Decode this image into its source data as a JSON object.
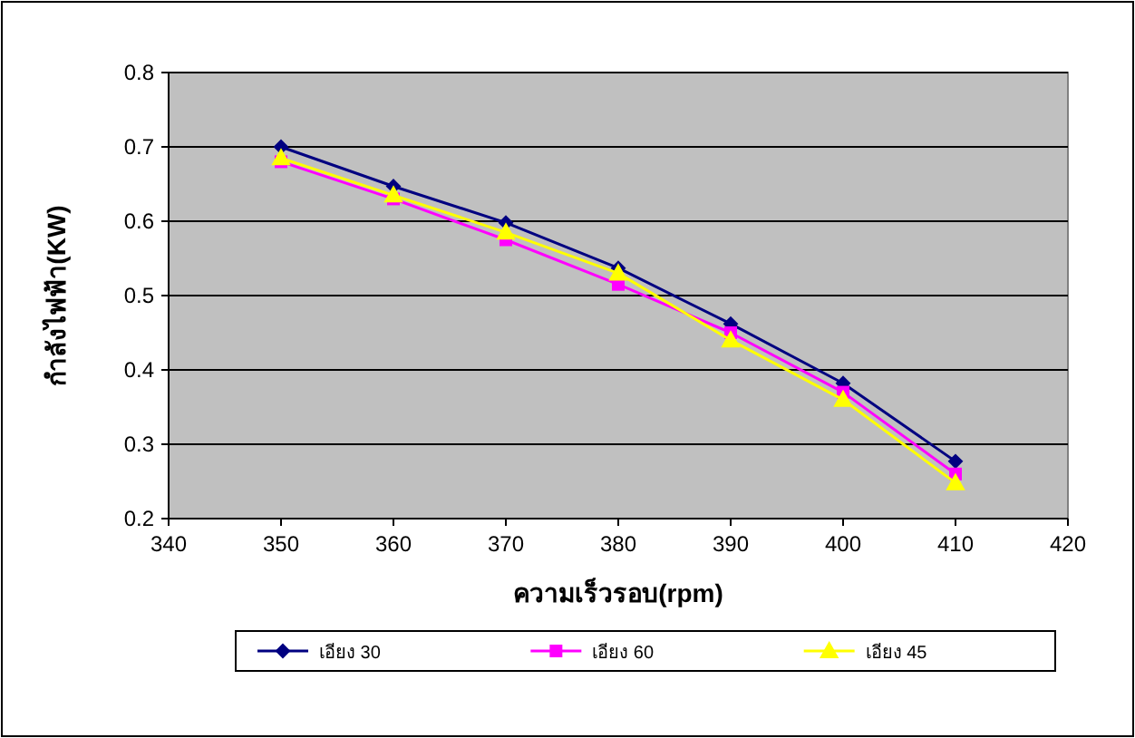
{
  "chart_data": {
    "type": "line",
    "xlabel": "ความเร็วรอบ(rpm)",
    "ylabel": "กำลังไฟฟ้า(KW)",
    "x": [
      350,
      360,
      370,
      380,
      390,
      400,
      410
    ],
    "series": [
      {
        "name": "เอียง 30",
        "color": "#000080",
        "marker": "diamond",
        "values": [
          0.7,
          0.647,
          0.598,
          0.537,
          0.462,
          0.382,
          0.277
        ]
      },
      {
        "name": "เอียง 60",
        "color": "#ff00ff",
        "marker": "square",
        "values": [
          0.68,
          0.63,
          0.575,
          0.515,
          0.45,
          0.37,
          0.26
        ]
      },
      {
        "name": "เอียง 45",
        "color": "#ffff00",
        "marker": "triangle",
        "values": [
          0.685,
          0.635,
          0.585,
          0.53,
          0.44,
          0.36,
          0.248
        ]
      }
    ],
    "xlim": [
      340,
      420
    ],
    "xticks": [
      340,
      350,
      360,
      370,
      380,
      390,
      400,
      410,
      420
    ],
    "ylim": [
      0.2,
      0.8
    ],
    "yticks": [
      0.2,
      0.3,
      0.4,
      0.5,
      0.6,
      0.7,
      0.8
    ],
    "grid": "y",
    "legend": "bottom",
    "line_style": "solid"
  }
}
